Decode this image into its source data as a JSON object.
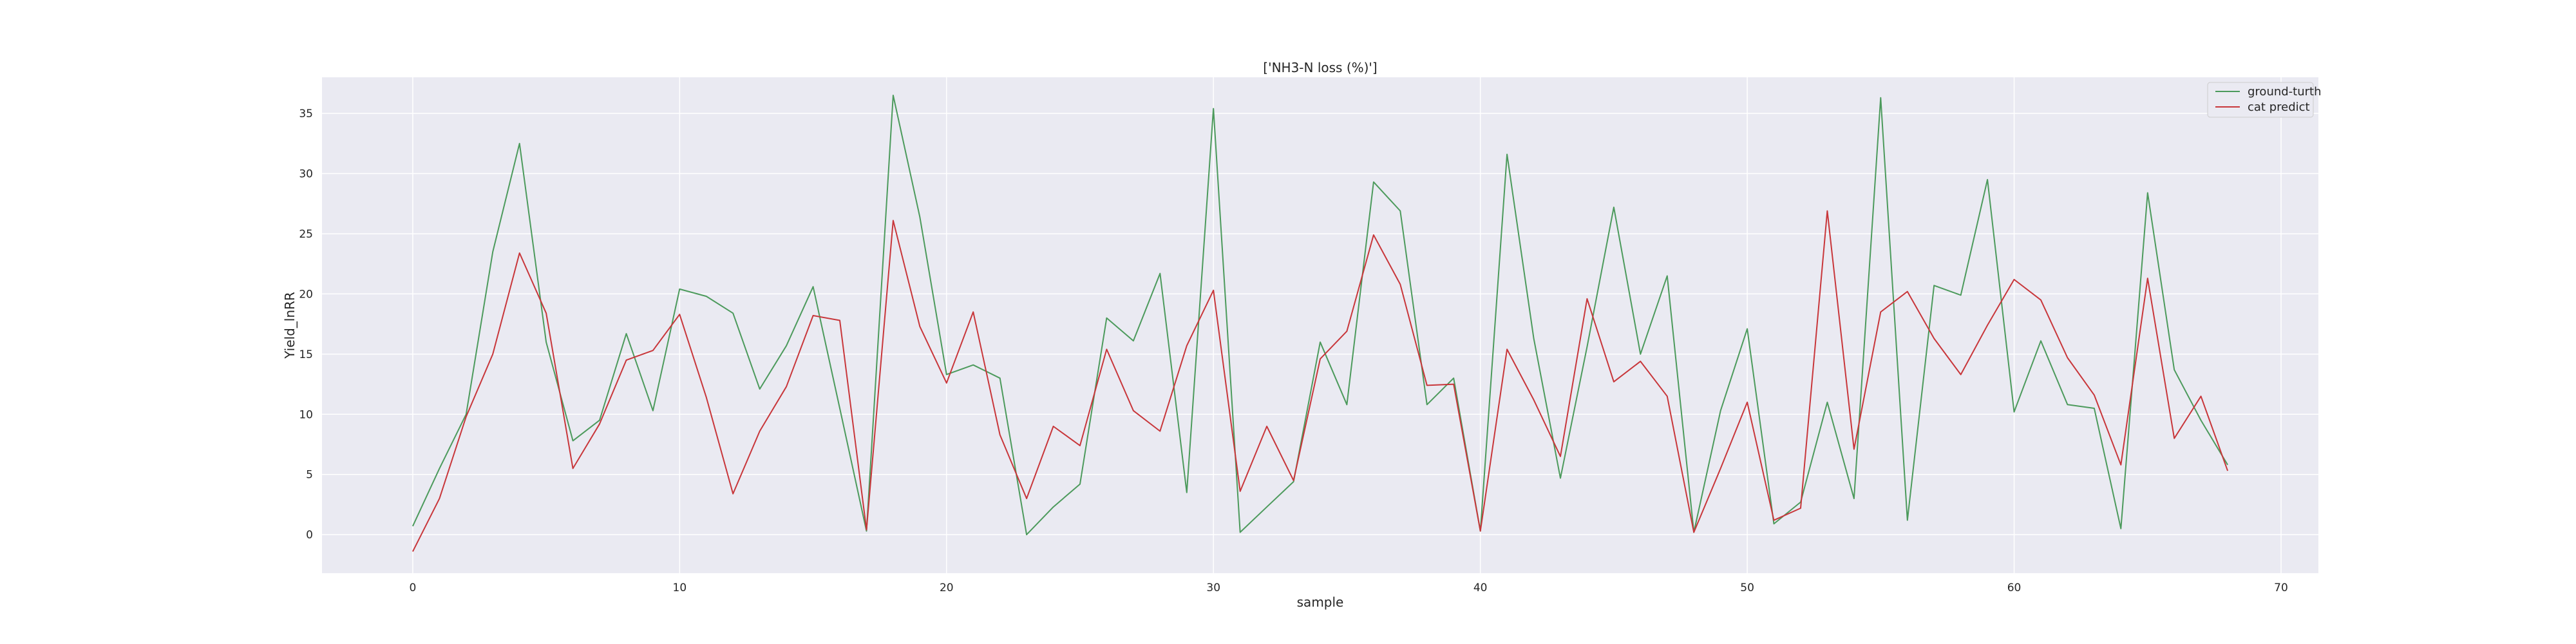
{
  "chart_data": {
    "type": "line",
    "title": "['NH3-N loss (%)']",
    "xlabel": "sample",
    "ylabel": "Yield_lnRR",
    "xlim": [
      -3.4,
      71.4
    ],
    "ylim": [
      -3.2,
      38.0
    ],
    "xticks": [
      0,
      10,
      20,
      30,
      40,
      50,
      60,
      70
    ],
    "yticks": [
      0,
      5,
      10,
      15,
      20,
      25,
      30,
      35
    ],
    "grid": true,
    "legend_position": "top-right",
    "x": [
      0,
      1,
      2,
      3,
      4,
      5,
      6,
      7,
      8,
      9,
      10,
      11,
      12,
      13,
      14,
      15,
      16,
      17,
      18,
      19,
      20,
      21,
      22,
      23,
      24,
      25,
      26,
      27,
      28,
      29,
      30,
      31,
      32,
      33,
      34,
      35,
      36,
      37,
      38,
      39,
      40,
      41,
      42,
      43,
      44,
      45,
      46,
      47,
      48,
      49,
      50,
      51,
      52,
      53,
      54,
      55,
      56,
      57,
      58,
      59,
      60,
      61,
      62,
      63,
      64,
      65,
      66,
      67,
      68
    ],
    "series": [
      {
        "name": "ground-turth",
        "color": "#4c9a5c",
        "values": [
          0.7,
          5.5,
          10,
          23.5,
          32.5,
          16,
          7.8,
          9.5,
          16.7,
          10.3,
          20.4,
          19.8,
          18.4,
          12.1,
          15.7,
          20.6,
          10.5,
          0.3,
          36.5,
          26.4,
          13.3,
          14.1,
          13,
          0,
          2.3,
          4.2,
          18,
          16.1,
          21.7,
          3.5,
          35.4,
          0.2,
          2.3,
          4.4,
          16,
          10.8,
          29.3,
          26.9,
          10.8,
          13,
          0.3,
          31.6,
          16.3,
          4.7,
          15.6,
          27.2,
          15,
          21.5,
          0.2,
          10.3,
          17.1,
          0.9,
          2.7,
          11,
          3,
          36.3,
          1.2,
          20.7,
          19.9,
          29.5,
          10.2,
          16.1,
          10.8,
          10.5,
          0.5,
          28.4,
          13.7,
          9.5,
          5.8
        ]
      },
      {
        "name": "cat predict",
        "color": "#c8363a",
        "values": [
          -1.4,
          3,
          9.8,
          15,
          23.4,
          18.4,
          5.5,
          9.2,
          14.5,
          15.3,
          18.3,
          11.4,
          3.4,
          8.6,
          12.3,
          18.2,
          17.8,
          0.4,
          26.1,
          17.3,
          12.6,
          18.5,
          8.3,
          3,
          9,
          7.4,
          15.4,
          10.3,
          8.6,
          15.7,
          20.3,
          3.6,
          9,
          4.5,
          14.6,
          16.9,
          24.9,
          20.8,
          12.4,
          12.5,
          0.3,
          15.4,
          11.2,
          6.5,
          19.6,
          12.7,
          14.4,
          11.5,
          0.2,
          5.5,
          11,
          1.2,
          2.2,
          26.9,
          7.1,
          18.5,
          20.2,
          16.3,
          13.3,
          17.4,
          21.2,
          19.5,
          14.7,
          11.6,
          5.8,
          21.3,
          8,
          11.5,
          5.3
        ]
      }
    ]
  }
}
